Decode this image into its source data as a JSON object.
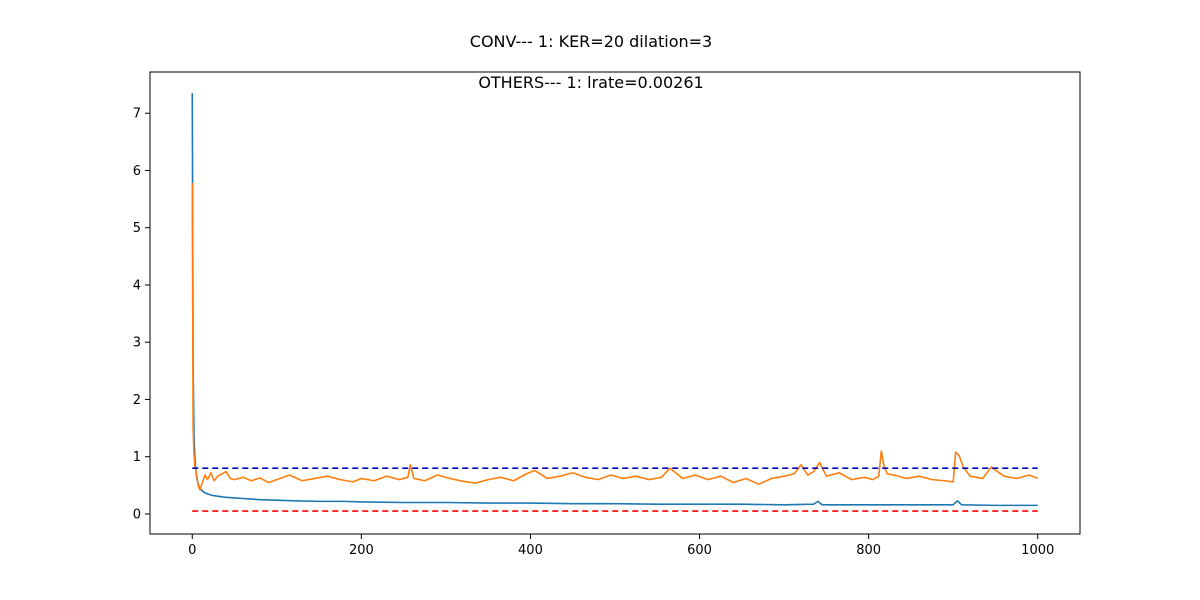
{
  "chart_data": {
    "type": "line",
    "title": "CONV--- 1: KER=20   dilation=3",
    "subtitle": "OTHERS--- 1: lrate=0.00261",
    "xlabel": "",
    "ylabel": "",
    "xlim": [
      -50,
      1050
    ],
    "ylim": [
      -0.35,
      7.72
    ],
    "xticks": [
      0,
      200,
      400,
      600,
      800,
      1000
    ],
    "yticks": [
      0,
      1,
      2,
      3,
      4,
      5,
      6,
      7
    ],
    "grid": false,
    "legend": "none",
    "series": [
      {
        "color": "#1f77b4",
        "style": "solid",
        "x": [
          0,
          1,
          2,
          3,
          4,
          5,
          6,
          7,
          8,
          10,
          12,
          15,
          20,
          25,
          30,
          40,
          50,
          60,
          70,
          80,
          100,
          120,
          150,
          180,
          200,
          250,
          300,
          350,
          400,
          450,
          500,
          550,
          600,
          650,
          700,
          735,
          740,
          745,
          800,
          850,
          900,
          905,
          910,
          950,
          1000
        ],
        "y": [
          7.35,
          2.6,
          1.4,
          1.0,
          0.8,
          0.66,
          0.58,
          0.52,
          0.48,
          0.43,
          0.4,
          0.37,
          0.34,
          0.32,
          0.31,
          0.29,
          0.28,
          0.27,
          0.26,
          0.25,
          0.24,
          0.23,
          0.22,
          0.22,
          0.21,
          0.2,
          0.2,
          0.19,
          0.19,
          0.18,
          0.18,
          0.17,
          0.17,
          0.17,
          0.16,
          0.17,
          0.22,
          0.16,
          0.16,
          0.16,
          0.16,
          0.23,
          0.16,
          0.15,
          0.15
        ]
      },
      {
        "color": "#ff7f0e",
        "style": "solid",
        "x": [
          0,
          1,
          2,
          3,
          5,
          7,
          9,
          12,
          15,
          18,
          22,
          26,
          30,
          35,
          40,
          45,
          50,
          60,
          70,
          80,
          90,
          100,
          115,
          130,
          145,
          160,
          175,
          190,
          200,
          215,
          230,
          245,
          255,
          258,
          262,
          275,
          290,
          305,
          320,
          335,
          350,
          365,
          380,
          395,
          405,
          420,
          435,
          450,
          465,
          480,
          495,
          510,
          525,
          540,
          555,
          565,
          580,
          595,
          610,
          625,
          640,
          655,
          670,
          685,
          700,
          712,
          720,
          728,
          735,
          742,
          750,
          765,
          780,
          795,
          805,
          812,
          815,
          818,
          822,
          830,
          845,
          860,
          875,
          890,
          900,
          903,
          907,
          912,
          920,
          935,
          945,
          960,
          975,
          990,
          1000
        ],
        "y": [
          5.78,
          1.5,
          1.05,
          0.85,
          0.7,
          0.5,
          0.42,
          0.55,
          0.68,
          0.6,
          0.72,
          0.58,
          0.66,
          0.7,
          0.74,
          0.62,
          0.6,
          0.64,
          0.58,
          0.63,
          0.55,
          0.6,
          0.68,
          0.58,
          0.62,
          0.66,
          0.6,
          0.56,
          0.62,
          0.58,
          0.66,
          0.6,
          0.64,
          0.86,
          0.62,
          0.58,
          0.68,
          0.62,
          0.57,
          0.54,
          0.6,
          0.64,
          0.58,
          0.7,
          0.76,
          0.62,
          0.66,
          0.72,
          0.64,
          0.6,
          0.68,
          0.62,
          0.66,
          0.6,
          0.64,
          0.8,
          0.62,
          0.68,
          0.6,
          0.66,
          0.55,
          0.62,
          0.52,
          0.62,
          0.66,
          0.7,
          0.86,
          0.68,
          0.74,
          0.9,
          0.66,
          0.72,
          0.6,
          0.64,
          0.6,
          0.66,
          1.1,
          0.85,
          0.7,
          0.68,
          0.62,
          0.66,
          0.6,
          0.58,
          0.56,
          1.08,
          1.02,
          0.82,
          0.66,
          0.62,
          0.82,
          0.66,
          0.62,
          0.68,
          0.62
        ]
      },
      {
        "color": "#0000bf",
        "style": "dashed",
        "x": [
          0,
          1000
        ],
        "y": [
          0.8,
          0.8
        ]
      },
      {
        "color": "#ff0000",
        "style": "dashed",
        "x": [
          0,
          1000
        ],
        "y": [
          0.05,
          0.05
        ]
      }
    ]
  }
}
